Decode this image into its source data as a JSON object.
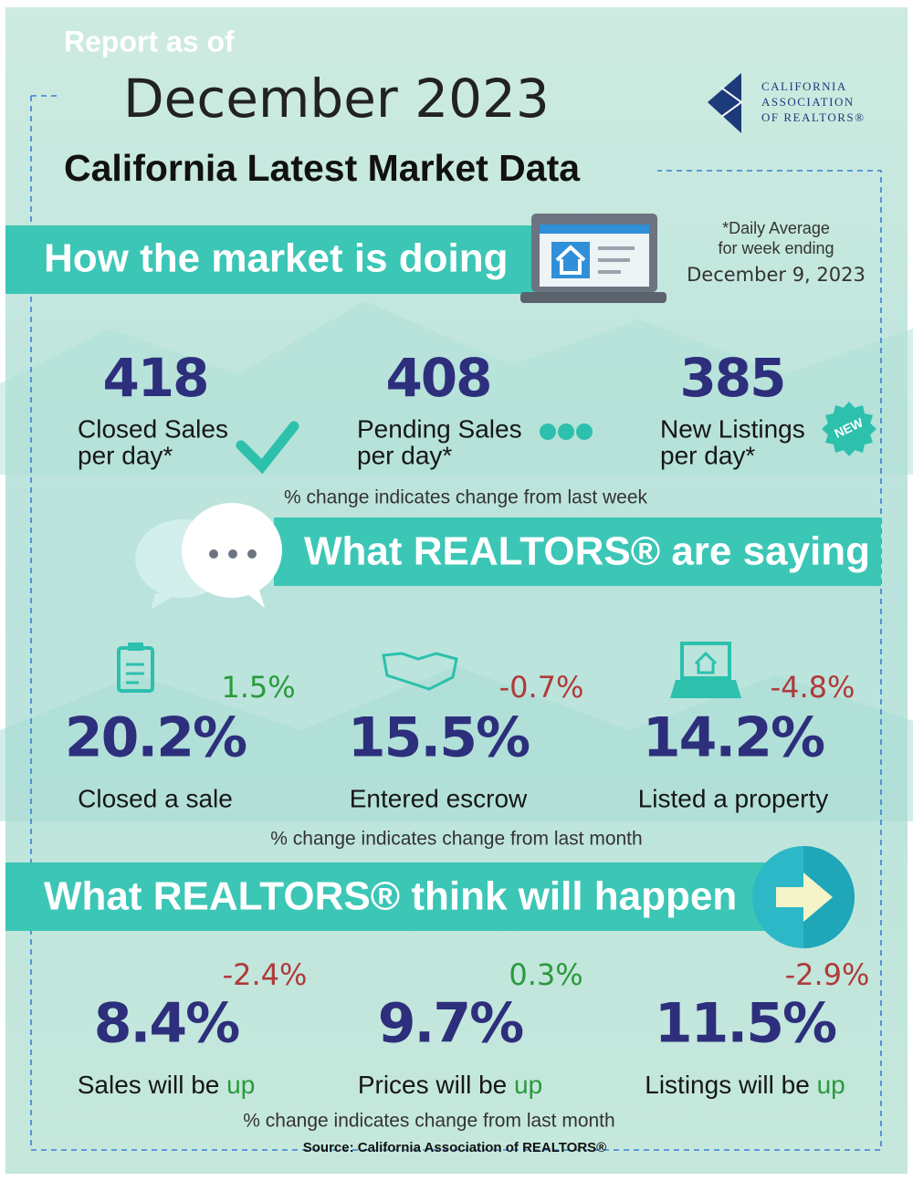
{
  "header": {
    "report_label": "Report as of",
    "date": "December 2023",
    "title": "California Latest Market Data",
    "logo": [
      "CALIFORNIA",
      "ASSOCIATION",
      "OF REALTORS®"
    ]
  },
  "market": {
    "heading": "How the market is doing",
    "period_note": [
      "*Daily Average",
      "for week ending",
      "December 9, 2023"
    ],
    "metrics": [
      {
        "value": "418",
        "label": [
          "Closed Sales",
          "per day*"
        ]
      },
      {
        "value": "408",
        "label": [
          "Pending Sales",
          "per day*"
        ]
      },
      {
        "value": "385",
        "label": [
          "New Listings",
          "per day*"
        ]
      }
    ],
    "badge": "NEW",
    "change_note": "% change indicates change from last week"
  },
  "saying": {
    "heading": "What REALTORS® are saying",
    "items": [
      {
        "change": "1.5%",
        "value": "20.2%",
        "label": "Closed a sale"
      },
      {
        "change": "-0.7%",
        "value": "15.5%",
        "label": "Entered escrow"
      },
      {
        "change": "-4.8%",
        "value": "14.2%",
        "label": "Listed a property"
      }
    ],
    "change_note": "% change indicates change from last month"
  },
  "outlook": {
    "heading": "What REALTORS® think will happen",
    "items": [
      {
        "change": "-2.4%",
        "value": "8.4%",
        "label": "Sales will be ",
        "direction": "up"
      },
      {
        "change": "0.3%",
        "value": "9.7%",
        "label": "Prices will be ",
        "direction": "up"
      },
      {
        "change": "-2.9%",
        "value": "11.5%",
        "label": "Listings will be ",
        "direction": "up"
      }
    ],
    "change_note": "% change indicates change from last month"
  },
  "source": "Source: California Association of REALTORS®"
}
